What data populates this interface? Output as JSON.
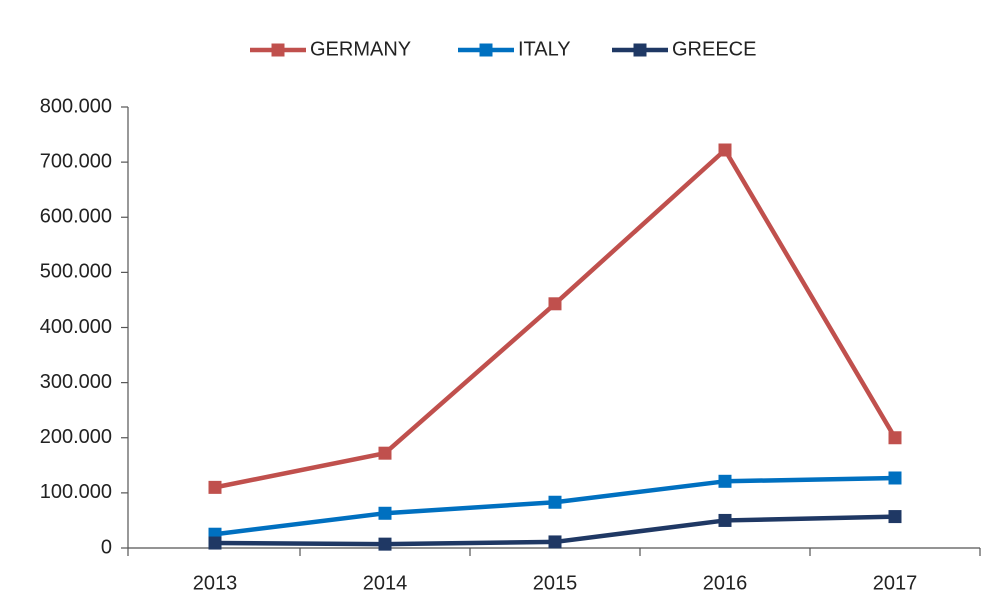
{
  "chart_data": {
    "type": "line",
    "categories": [
      "2013",
      "2014",
      "2015",
      "2016",
      "2017"
    ],
    "series": [
      {
        "name": "GERMANY",
        "color": "#c0504d",
        "values": [
          110000,
          172000,
          443000,
          722000,
          200000
        ]
      },
      {
        "name": "ITALY",
        "color": "#0070c0",
        "values": [
          25000,
          63000,
          83000,
          121000,
          127000
        ]
      },
      {
        "name": "GREECE",
        "color": "#1f3864",
        "values": [
          9000,
          7000,
          11000,
          50000,
          57000
        ]
      }
    ],
    "ylim": [
      0,
      800000
    ],
    "yticks": [
      0,
      {
        "value": 100000,
        "label": "100.000"
      },
      {
        "value": 200000,
        "label": "200.000"
      },
      {
        "value": 300000,
        "label": "300.000"
      },
      {
        "value": 400000,
        "label": "400.000"
      },
      {
        "value": 500000,
        "label": "500.000"
      },
      {
        "value": 600000,
        "label": "600.000"
      },
      {
        "value": 700000,
        "label": "700.000"
      },
      {
        "value": 800000,
        "label": "800.000"
      }
    ],
    "legend": "top"
  }
}
